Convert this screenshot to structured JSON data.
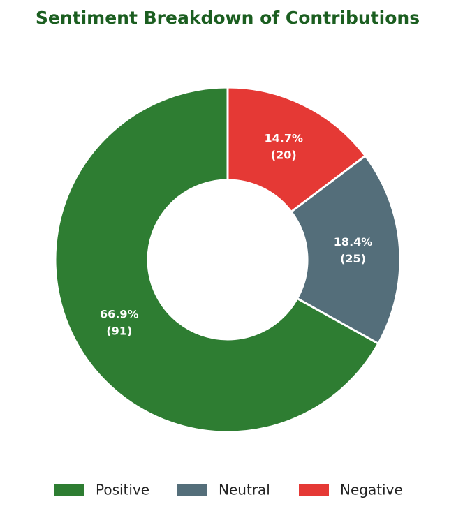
{
  "chart_data": {
    "type": "donut",
    "title": "Sentiment Breakdown of Contributions",
    "categories": [
      "Positive",
      "Neutral",
      "Negative"
    ],
    "colors": [
      "#2e7d32",
      "#546e7a",
      "#e53935"
    ],
    "values": [
      91,
      25,
      20
    ],
    "value_labels": [
      "(91)",
      "(25)",
      "(20)"
    ],
    "percentages": [
      66.9,
      18.4,
      14.7
    ],
    "percentage_labels": [
      "66.9%",
      "18.4%",
      "14.7%"
    ],
    "legend": "bottom"
  }
}
